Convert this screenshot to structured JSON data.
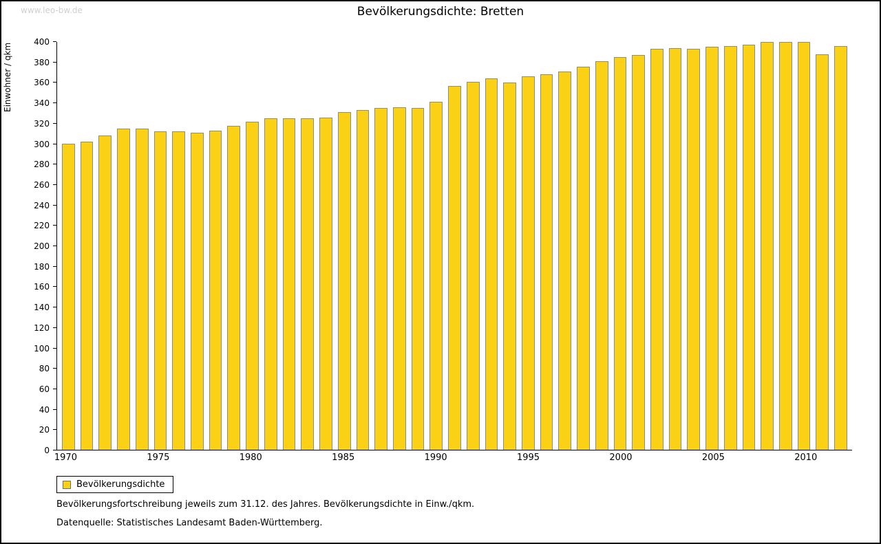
{
  "watermark": "www.leo-bw.de",
  "title": "Bevölkerungsdichte: Bretten",
  "legend": {
    "label": "Bevölkerungsdichte"
  },
  "footnote1": "Bevölkerungsfortschreibung jeweils zum 31.12. des Jahres. Bevölkerungsdichte in Einw./qkm.",
  "footnote2": "Datenquelle: Statistisches Landesamt Baden-Württemberg.",
  "colors": {
    "bar_fill": "#FBD116",
    "bar_border": "#8c8c8c",
    "watermark": "#cfcfcf"
  },
  "chart_data": {
    "type": "bar",
    "title": "Bevölkerungsdichte: Bretten",
    "xlabel": "",
    "ylabel": "Einwohner / qkm",
    "ylim": [
      0,
      400
    ],
    "ytick_step": 20,
    "xtick_every": 5,
    "grid": false,
    "legend_position": "bottom-left",
    "legend_entries": [
      "Bevölkerungsdichte"
    ],
    "categories": [
      1970,
      1971,
      1972,
      1973,
      1974,
      1975,
      1976,
      1977,
      1978,
      1979,
      1980,
      1981,
      1982,
      1983,
      1984,
      1985,
      1986,
      1987,
      1988,
      1989,
      1990,
      1991,
      1992,
      1993,
      1994,
      1995,
      1996,
      1997,
      1998,
      1999,
      2000,
      2001,
      2002,
      2003,
      2004,
      2005,
      2006,
      2007,
      2008,
      2009,
      2010,
      2011,
      2012
    ],
    "values": [
      300,
      302,
      308,
      315,
      315,
      312,
      312,
      311,
      313,
      318,
      322,
      325,
      325,
      325,
      326,
      331,
      333,
      335,
      336,
      335,
      341,
      357,
      361,
      364,
      360,
      366,
      368,
      371,
      376,
      381,
      385,
      387,
      393,
      394,
      393,
      395,
      396,
      397,
      400,
      400,
      400,
      388,
      396
    ]
  }
}
